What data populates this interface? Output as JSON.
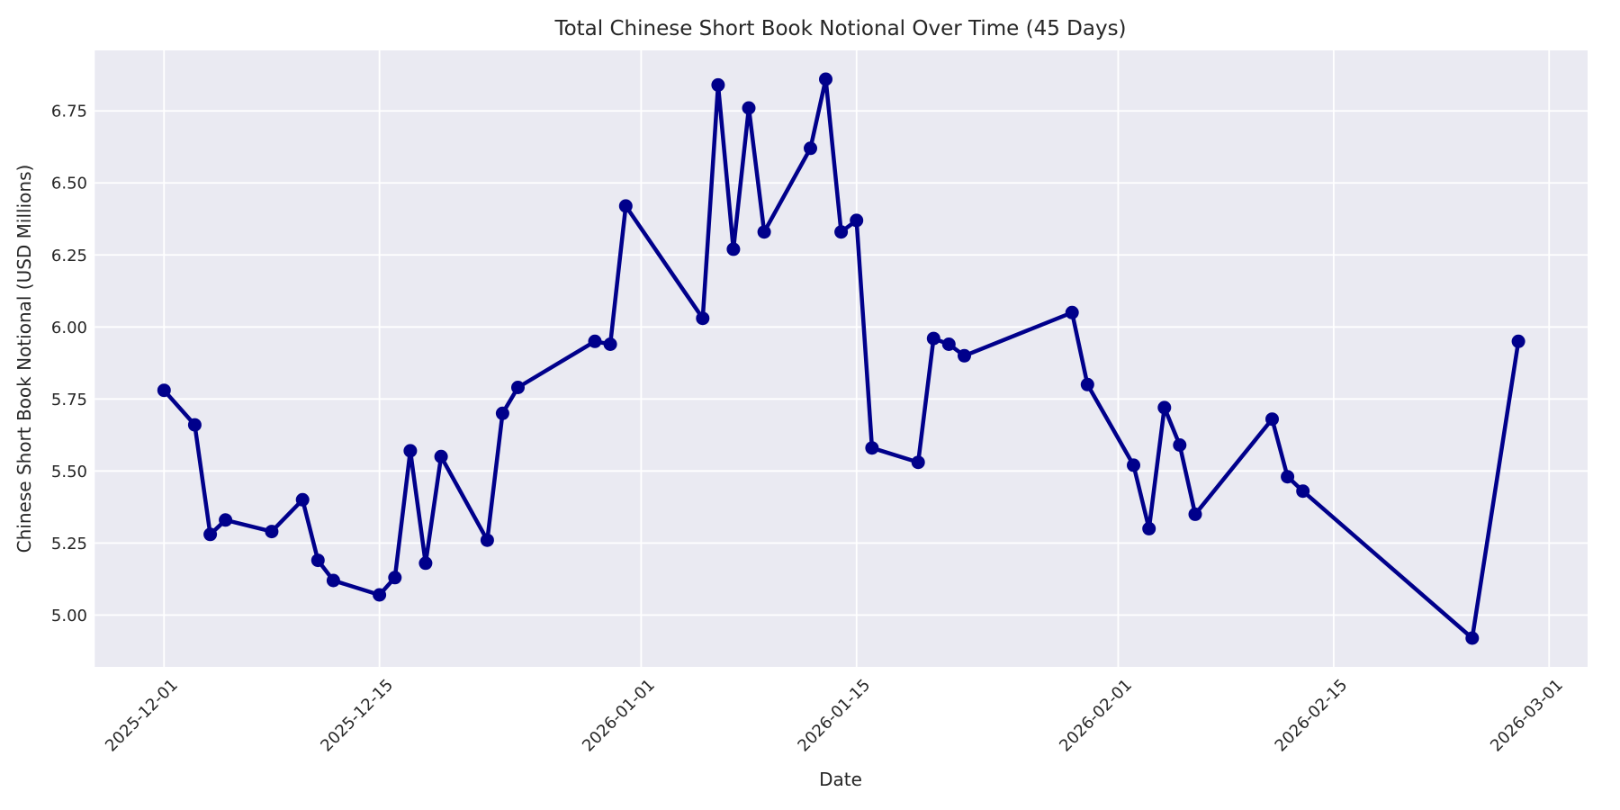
{
  "chart_data": {
    "type": "line",
    "title": "Total Chinese Short Book Notional Over Time (45 Days)",
    "xlabel": "Date",
    "ylabel": "Chinese Short Book Notional (USD Millions)",
    "dates": [
      "2025-12-01",
      "2025-12-03",
      "2025-12-04",
      "2025-12-05",
      "2025-12-08",
      "2025-12-10",
      "2025-12-11",
      "2025-12-12",
      "2025-12-15",
      "2025-12-16",
      "2025-12-17",
      "2025-12-18",
      "2025-12-19",
      "2025-12-22",
      "2025-12-23",
      "2025-12-24",
      "2025-12-29",
      "2025-12-30",
      "2025-12-31",
      "2026-01-05",
      "2026-01-06",
      "2026-01-07",
      "2026-01-08",
      "2026-01-09",
      "2026-01-12",
      "2026-01-13",
      "2026-01-14",
      "2026-01-15",
      "2026-01-16",
      "2026-01-19",
      "2026-01-20",
      "2026-01-21",
      "2026-01-22",
      "2026-01-29",
      "2026-01-30",
      "2026-02-02",
      "2026-02-03",
      "2026-02-04",
      "2026-02-05",
      "2026-02-06",
      "2026-02-11",
      "2026-02-12",
      "2026-02-13",
      "2026-02-24",
      "2026-02-27"
    ],
    "values": [
      5.78,
      5.66,
      5.28,
      5.33,
      5.29,
      5.4,
      5.19,
      5.12,
      5.07,
      5.13,
      5.57,
      5.18,
      5.55,
      5.26,
      5.7,
      5.79,
      5.95,
      5.94,
      6.42,
      6.03,
      6.84,
      6.27,
      6.76,
      6.33,
      6.62,
      6.86,
      6.33,
      6.37,
      5.58,
      5.53,
      5.96,
      5.94,
      5.9,
      6.05,
      5.8,
      5.52,
      5.3,
      5.72,
      5.59,
      5.35,
      5.68,
      5.48,
      5.43,
      4.92,
      5.95
    ],
    "x_tick_dates": [
      "2025-12-01",
      "2025-12-15",
      "2026-01-01",
      "2026-01-15",
      "2026-02-01",
      "2026-02-15",
      "2026-03-01"
    ],
    "y_tick_labels": [
      "5.00",
      "5.25",
      "5.50",
      "5.75",
      "6.00",
      "6.25",
      "6.50",
      "6.75"
    ],
    "y_tick_values": [
      5.0,
      5.25,
      5.5,
      5.75,
      6.0,
      6.25,
      6.5,
      6.75
    ],
    "ylim": [
      4.82,
      6.96
    ],
    "xlim_days_from_first": [
      -4.5,
      92.5
    ],
    "grid": true,
    "legend": "none",
    "line_color": "#00008B",
    "marker": "circle",
    "plot_bg_color": "#EAEAF2",
    "grid_color": "#FFFFFF",
    "text_color": "#262626",
    "figure_bg_color": "#FFFFFF"
  }
}
